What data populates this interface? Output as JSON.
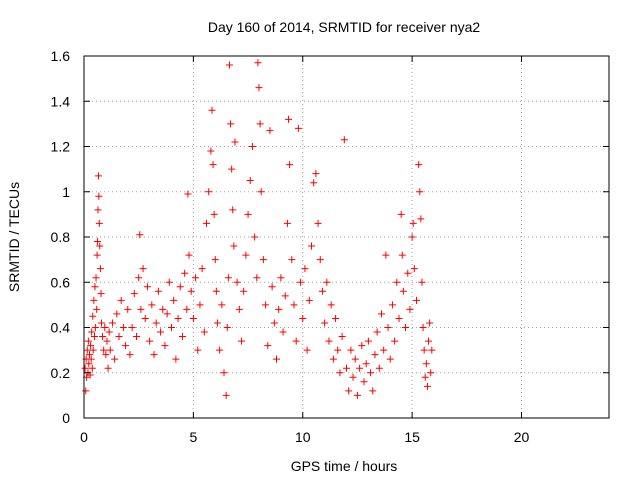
{
  "chart_data": {
    "type": "scatter",
    "title": "Day 160 of 2014, SRMTID for receiver nya2",
    "xlabel": "GPS time / hours",
    "ylabel": "SRMTID / TECUs",
    "xlim": [
      0,
      24
    ],
    "ylim": [
      0,
      1.6
    ],
    "x_ticks": [
      "0",
      "5",
      "10",
      "15",
      "20"
    ],
    "y_ticks": [
      "0",
      "0.2",
      "0.4",
      "0.6",
      "0.8",
      "1",
      "1.2",
      "1.4",
      "1.6"
    ],
    "grid": true,
    "marker": "+",
    "color": "#ff0000",
    "series": [
      {
        "name": "nya2",
        "points": [
          [
            0.05,
            0.22
          ],
          [
            0.08,
            0.12
          ],
          [
            0.1,
            0.26
          ],
          [
            0.12,
            0.18
          ],
          [
            0.15,
            0.3
          ],
          [
            0.18,
            0.2
          ],
          [
            0.2,
            0.34
          ],
          [
            0.22,
            0.24
          ],
          [
            0.25,
            0.28
          ],
          [
            0.28,
            0.19
          ],
          [
            0.3,
            0.32
          ],
          [
            0.33,
            0.26
          ],
          [
            0.35,
            0.38
          ],
          [
            0.38,
            0.22
          ],
          [
            0.4,
            0.45
          ],
          [
            0.42,
            0.3
          ],
          [
            0.45,
            0.52
          ],
          [
            0.48,
            0.36
          ],
          [
            0.5,
            0.58
          ],
          [
            0.52,
            0.4
          ],
          [
            0.55,
            0.62
          ],
          [
            0.58,
            0.48
          ],
          [
            0.6,
            0.72
          ],
          [
            0.62,
            0.78
          ],
          [
            0.64,
            0.92
          ],
          [
            0.66,
            1.07
          ],
          [
            0.68,
            0.98
          ],
          [
            0.7,
            0.86
          ],
          [
            0.72,
            0.76
          ],
          [
            0.75,
            0.66
          ],
          [
            0.78,
            0.55
          ],
          [
            0.8,
            0.42
          ],
          [
            0.85,
            0.36
          ],
          [
            0.9,
            0.3
          ],
          [
            0.95,
            0.4
          ],
          [
            1.0,
            0.28
          ],
          [
            1.05,
            0.34
          ],
          [
            1.1,
            0.22
          ],
          [
            1.15,
            0.38
          ],
          [
            1.2,
            0.3
          ],
          [
            1.3,
            0.42
          ],
          [
            1.4,
            0.26
          ],
          [
            1.5,
            0.46
          ],
          [
            1.6,
            0.36
          ],
          [
            1.7,
            0.52
          ],
          [
            1.8,
            0.4
          ],
          [
            1.9,
            0.32
          ],
          [
            2.0,
            0.48
          ],
          [
            2.1,
            0.28
          ],
          [
            2.2,
            0.4
          ],
          [
            2.3,
            0.55
          ],
          [
            2.4,
            0.36
          ],
          [
            2.5,
            0.62
          ],
          [
            2.55,
            0.81
          ],
          [
            2.6,
            0.48
          ],
          [
            2.7,
            0.66
          ],
          [
            2.8,
            0.44
          ],
          [
            2.9,
            0.58
          ],
          [
            3.0,
            0.34
          ],
          [
            3.1,
            0.5
          ],
          [
            3.2,
            0.28
          ],
          [
            3.3,
            0.42
          ],
          [
            3.4,
            0.56
          ],
          [
            3.5,
            0.38
          ],
          [
            3.6,
            0.48
          ],
          [
            3.7,
            0.32
          ],
          [
            3.8,
            0.46
          ],
          [
            3.9,
            0.6
          ],
          [
            4.0,
            0.4
          ],
          [
            4.1,
            0.52
          ],
          [
            4.2,
            0.26
          ],
          [
            4.3,
            0.44
          ],
          [
            4.4,
            0.58
          ],
          [
            4.5,
            0.36
          ],
          [
            4.6,
            0.64
          ],
          [
            4.7,
            0.48
          ],
          [
            4.75,
            0.99
          ],
          [
            4.8,
            0.72
          ],
          [
            4.9,
            0.56
          ],
          [
            5.0,
            0.44
          ],
          [
            5.1,
            0.62
          ],
          [
            5.2,
            0.3
          ],
          [
            5.3,
            0.5
          ],
          [
            5.4,
            0.66
          ],
          [
            5.5,
            0.38
          ],
          [
            5.6,
            0.86
          ],
          [
            5.7,
            1.0
          ],
          [
            5.8,
            1.18
          ],
          [
            5.85,
            1.36
          ],
          [
            5.9,
            1.12
          ],
          [
            5.95,
            0.9
          ],
          [
            6.0,
            0.7
          ],
          [
            6.05,
            0.56
          ],
          [
            6.1,
            0.42
          ],
          [
            6.2,
            0.3
          ],
          [
            6.3,
            0.5
          ],
          [
            6.4,
            0.2
          ],
          [
            6.5,
            0.1
          ],
          [
            6.55,
            0.4
          ],
          [
            6.6,
            0.62
          ],
          [
            6.65,
            1.56
          ],
          [
            6.7,
            1.3
          ],
          [
            6.75,
            1.1
          ],
          [
            6.8,
            0.92
          ],
          [
            6.85,
            0.76
          ],
          [
            6.9,
            1.22
          ],
          [
            7.0,
            0.6
          ],
          [
            7.1,
            0.48
          ],
          [
            7.2,
            0.34
          ],
          [
            7.3,
            0.56
          ],
          [
            7.4,
            0.72
          ],
          [
            7.5,
            0.9
          ],
          [
            7.6,
            1.05
          ],
          [
            7.7,
            1.2
          ],
          [
            7.8,
            0.8
          ],
          [
            7.9,
            0.62
          ],
          [
            7.95,
            1.57
          ],
          [
            8.0,
            1.46
          ],
          [
            8.05,
            1.3
          ],
          [
            8.1,
            1.0
          ],
          [
            8.2,
            0.7
          ],
          [
            8.3,
            0.5
          ],
          [
            8.4,
            0.32
          ],
          [
            8.5,
            1.27
          ],
          [
            8.6,
            0.58
          ],
          [
            8.7,
            0.42
          ],
          [
            8.8,
            0.26
          ],
          [
            8.9,
            0.48
          ],
          [
            9.0,
            0.62
          ],
          [
            9.1,
            0.38
          ],
          [
            9.2,
            0.54
          ],
          [
            9.3,
            0.86
          ],
          [
            9.35,
            1.32
          ],
          [
            9.4,
            1.12
          ],
          [
            9.5,
            0.7
          ],
          [
            9.6,
            0.5
          ],
          [
            9.7,
            0.34
          ],
          [
            9.8,
            1.28
          ],
          [
            9.9,
            0.6
          ],
          [
            10.0,
            0.44
          ],
          [
            10.1,
            0.66
          ],
          [
            10.2,
            0.3
          ],
          [
            10.3,
            0.52
          ],
          [
            10.4,
            0.76
          ],
          [
            10.5,
            1.04
          ],
          [
            10.6,
            1.08
          ],
          [
            10.7,
            0.86
          ],
          [
            10.8,
            0.7
          ],
          [
            10.9,
            0.56
          ],
          [
            11.0,
            0.42
          ],
          [
            11.1,
            0.6
          ],
          [
            11.2,
            0.34
          ],
          [
            11.3,
            0.5
          ],
          [
            11.4,
            0.26
          ],
          [
            11.5,
            0.44
          ],
          [
            11.6,
            0.3
          ],
          [
            11.7,
            0.2
          ],
          [
            11.8,
            0.36
          ],
          [
            11.9,
            1.23
          ],
          [
            12.0,
            0.22
          ],
          [
            12.1,
            0.12
          ],
          [
            12.2,
            0.3
          ],
          [
            12.3,
            0.18
          ],
          [
            12.4,
            0.26
          ],
          [
            12.5,
            0.1
          ],
          [
            12.6,
            0.22
          ],
          [
            12.7,
            0.32
          ],
          [
            12.8,
            0.16
          ],
          [
            12.9,
            0.24
          ],
          [
            13.0,
            0.34
          ],
          [
            13.1,
            0.2
          ],
          [
            13.2,
            0.12
          ],
          [
            13.3,
            0.28
          ],
          [
            13.4,
            0.38
          ],
          [
            13.5,
            0.22
          ],
          [
            13.6,
            0.46
          ],
          [
            13.7,
            0.3
          ],
          [
            13.8,
            0.72
          ],
          [
            13.9,
            0.4
          ],
          [
            14.0,
            0.26
          ],
          [
            14.1,
            0.5
          ],
          [
            14.2,
            0.34
          ],
          [
            14.3,
            0.6
          ],
          [
            14.4,
            0.44
          ],
          [
            14.5,
            0.9
          ],
          [
            14.55,
            0.72
          ],
          [
            14.6,
            0.56
          ],
          [
            14.7,
            0.4
          ],
          [
            14.8,
            0.64
          ],
          [
            14.9,
            0.48
          ],
          [
            15.0,
            0.8
          ],
          [
            15.05,
            0.86
          ],
          [
            15.1,
            0.66
          ],
          [
            15.2,
            0.52
          ],
          [
            15.3,
            1.12
          ],
          [
            15.35,
            1.0
          ],
          [
            15.4,
            0.88
          ],
          [
            15.45,
            0.6
          ],
          [
            15.5,
            0.4
          ],
          [
            15.55,
            0.3
          ],
          [
            15.6,
            0.18
          ],
          [
            15.65,
            0.24
          ],
          [
            15.7,
            0.14
          ],
          [
            15.75,
            0.34
          ],
          [
            15.8,
            0.42
          ],
          [
            15.85,
            0.2
          ],
          [
            15.9,
            0.3
          ]
        ]
      }
    ]
  }
}
